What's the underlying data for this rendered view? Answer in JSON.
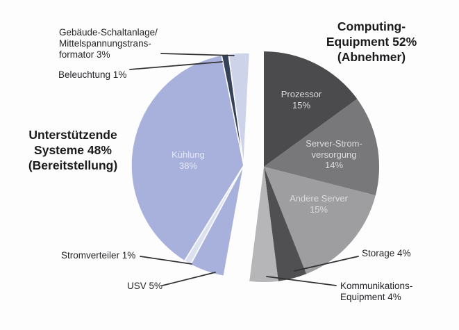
{
  "chart_data": {
    "type": "pie",
    "unit": "%",
    "background_color": "#fdfdfd",
    "legend_position": "none",
    "grid": false,
    "groups": [
      {
        "name": "Computing-Equipment",
        "share": 52,
        "role": "Abnehmer",
        "title": "Computing-\nEquipment 52%\n(Abnehmer)",
        "slices": [
          {
            "id": "prozessor",
            "label": "Prozessor",
            "value": 15,
            "color": "#4b4b4d",
            "label_display": "Prozessor\n15%",
            "label_placement": "inside"
          },
          {
            "id": "server-stromversorgung",
            "label": "Server-Stromversorgung",
            "value": 14,
            "color": "#78787b",
            "label_display": "Server-Strom-\nversorgung\n14%",
            "label_placement": "inside"
          },
          {
            "id": "andere-server",
            "label": "Andere Server",
            "value": 15,
            "color": "#9e9ea1",
            "label_display": "Andere Server\n15%",
            "label_placement": "inside"
          },
          {
            "id": "storage",
            "label": "Storage",
            "value": 4,
            "color": "#505052",
            "label_display": "Storage 4%",
            "label_placement": "outside"
          },
          {
            "id": "kommunikations-equipment",
            "label": "Kommunikations-Equipment",
            "value": 4,
            "color": "#b6b6b9",
            "label_display": "Kommunikations-\nEquipment 4%",
            "label_placement": "outside"
          }
        ]
      },
      {
        "name": "Unterstützende Systeme",
        "share": 48,
        "role": "Bereitstellung",
        "title": "Unterstützende\nSysteme 48%\n(Bereitstellung)",
        "slices": [
          {
            "id": "usv",
            "label": "USV",
            "value": 5,
            "color": "#a7b1db",
            "label_display": "USV 5%",
            "label_placement": "outside"
          },
          {
            "id": "stromverteiler",
            "label": "Stromverteiler",
            "value": 1,
            "color": "#dce1f1",
            "label_display": "Stromverteiler 1%",
            "label_placement": "outside"
          },
          {
            "id": "kuehlung",
            "label": "Kühlung",
            "value": 38,
            "color": "#a7b1db",
            "label_display": "Kühlung\n38%",
            "label_placement": "inside"
          },
          {
            "id": "beleuchtung",
            "label": "Beleuchtung",
            "value": 1,
            "color": "#36415a",
            "label_display": "Beleuchtung 1%",
            "label_placement": "outside"
          },
          {
            "id": "gebaeude-schaltanlage",
            "label": "Gebäude-Schaltanlage/Mittelspannungstransformator",
            "value": 3,
            "color": "#cdd4ea",
            "label_display": "Gebäude-Schaltanlage/\nMittelspannungstrans-\nformator 3%",
            "label_placement": "outside"
          }
        ]
      }
    ]
  }
}
